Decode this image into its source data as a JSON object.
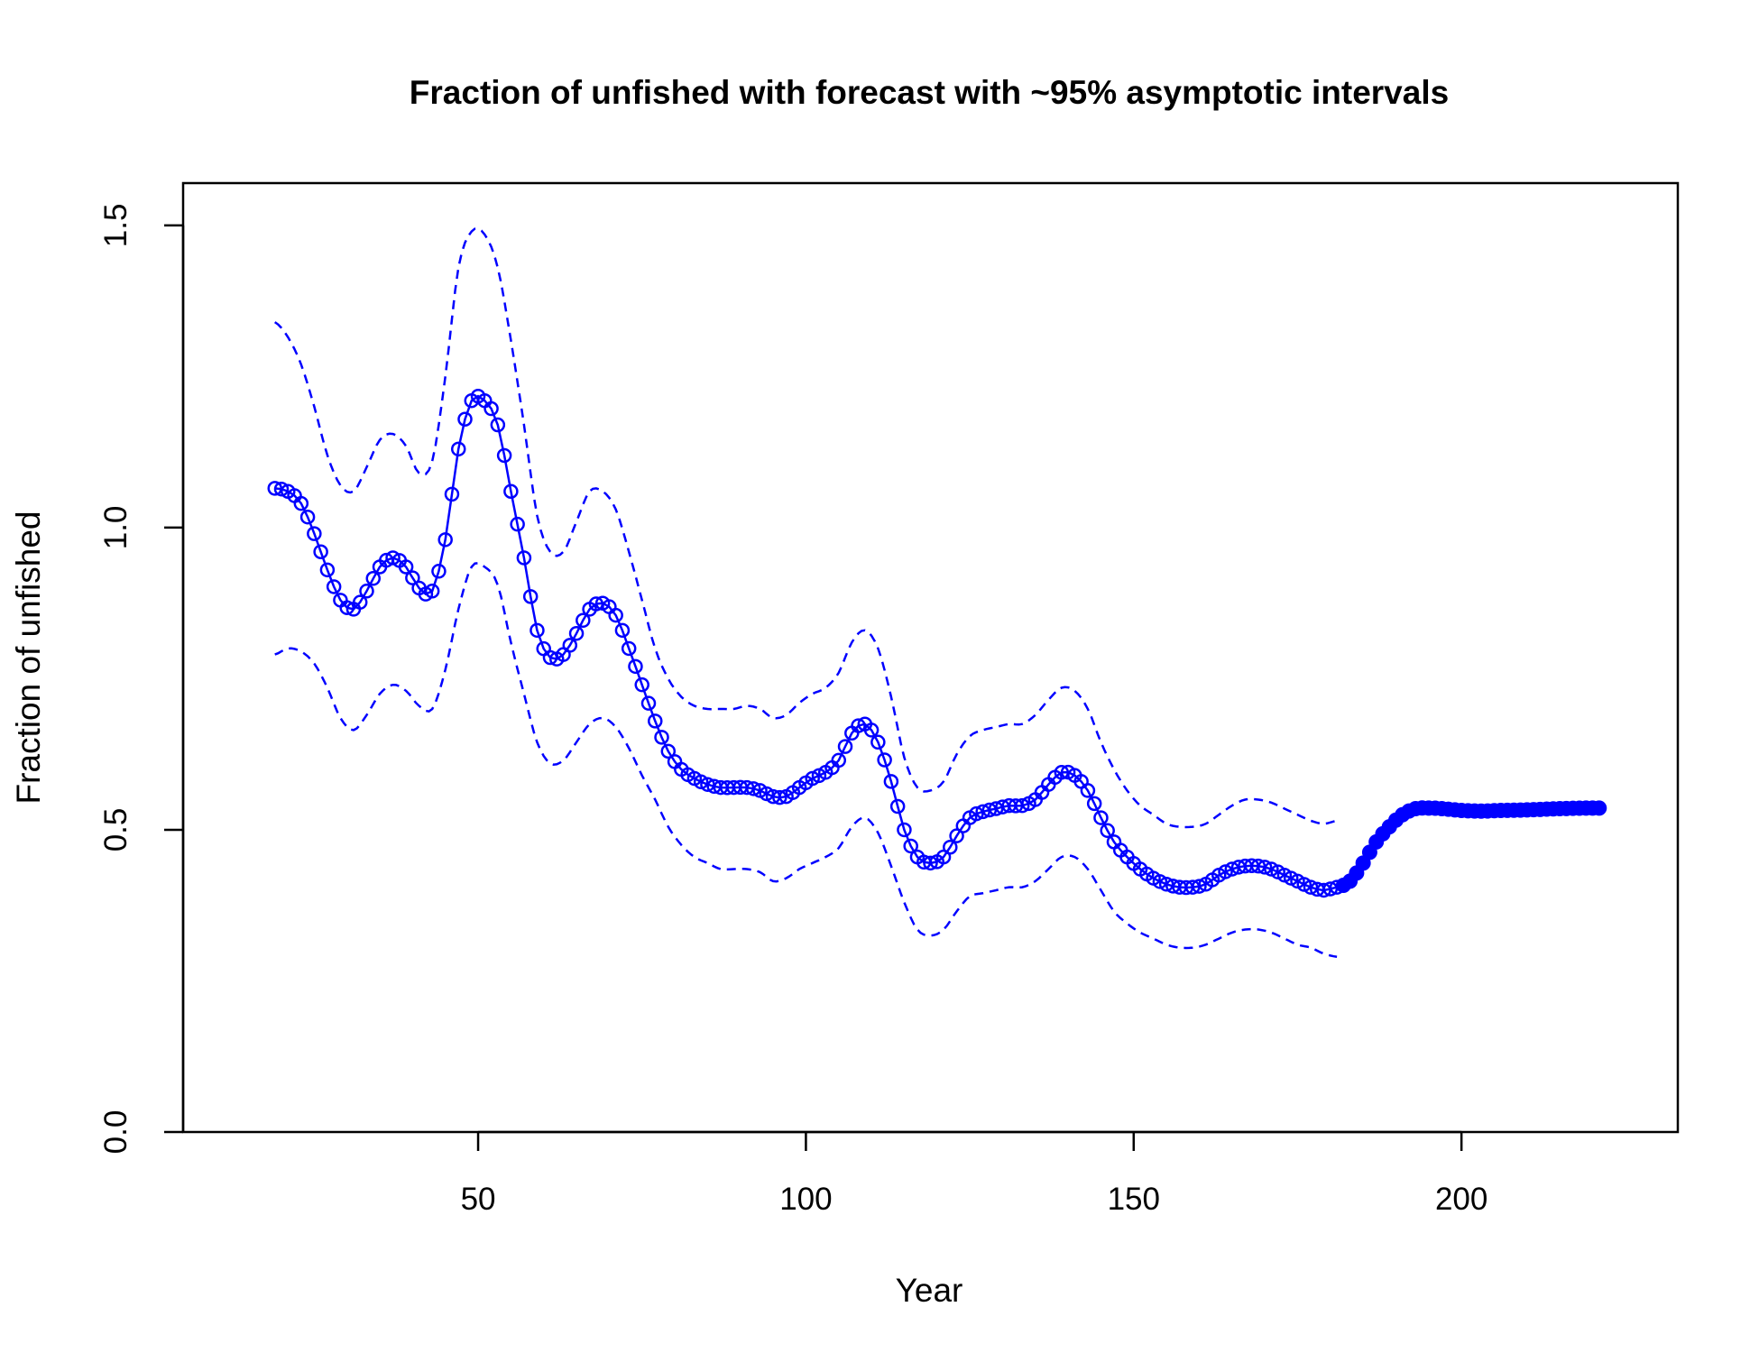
{
  "chart_data": {
    "type": "line",
    "title": "Fraction of unfished with forecast with ~95% asymptotic intervals",
    "xlabel": "Year",
    "ylabel": "Fraction of unfished",
    "xlim": [
      5,
      233
    ],
    "ylim": [
      0,
      1.57
    ],
    "x_ticks": [
      50,
      100,
      150,
      200
    ],
    "y_ticks": [
      0.0,
      0.5,
      1.0,
      1.5
    ],
    "x_tick_labels": [
      "50",
      "100",
      "150",
      "200"
    ],
    "y_tick_labels": [
      "0.0",
      "0.5",
      "1.0",
      "1.5"
    ],
    "grid": false,
    "legend": "none",
    "color": "#0000ff",
    "series": [
      {
        "style": "open circles with solid line",
        "knots": [
          [
            19,
            1.065
          ],
          [
            21,
            1.06
          ],
          [
            23,
            1.04
          ],
          [
            25,
            0.99
          ],
          [
            27,
            0.93
          ],
          [
            29,
            0.88
          ],
          [
            31,
            0.865
          ],
          [
            33,
            0.895
          ],
          [
            35,
            0.935
          ],
          [
            37,
            0.95
          ],
          [
            39,
            0.935
          ],
          [
            41,
            0.9
          ],
          [
            43,
            0.895
          ],
          [
            45,
            0.98
          ],
          [
            47,
            1.13
          ],
          [
            49,
            1.21
          ],
          [
            51,
            1.21
          ],
          [
            53,
            1.17
          ],
          [
            55,
            1.06
          ],
          [
            57,
            0.95
          ],
          [
            59,
            0.83
          ],
          [
            61,
            0.785
          ],
          [
            63,
            0.79
          ],
          [
            65,
            0.825
          ],
          [
            67,
            0.865
          ],
          [
            69,
            0.875
          ],
          [
            71,
            0.855
          ],
          [
            73,
            0.8
          ],
          [
            75,
            0.74
          ],
          [
            77,
            0.68
          ],
          [
            79,
            0.63
          ],
          [
            81,
            0.6
          ],
          [
            83,
            0.585
          ],
          [
            85,
            0.575
          ],
          [
            87,
            0.57
          ],
          [
            89,
            0.57
          ],
          [
            91,
            0.57
          ],
          [
            93,
            0.565
          ],
          [
            95,
            0.555
          ],
          [
            97,
            0.555
          ],
          [
            99,
            0.57
          ],
          [
            101,
            0.585
          ],
          [
            103,
            0.595
          ],
          [
            105,
            0.615
          ],
          [
            107,
            0.66
          ],
          [
            109,
            0.675
          ],
          [
            111,
            0.645
          ],
          [
            113,
            0.58
          ],
          [
            115,
            0.5
          ],
          [
            117,
            0.455
          ],
          [
            119,
            0.445
          ],
          [
            121,
            0.455
          ],
          [
            123,
            0.49
          ],
          [
            125,
            0.52
          ],
          [
            127,
            0.53
          ],
          [
            129,
            0.535
          ],
          [
            131,
            0.54
          ],
          [
            133,
            0.54
          ],
          [
            135,
            0.55
          ],
          [
            137,
            0.575
          ],
          [
            139,
            0.595
          ],
          [
            141,
            0.59
          ],
          [
            143,
            0.565
          ],
          [
            145,
            0.52
          ],
          [
            147,
            0.48
          ],
          [
            149,
            0.455
          ],
          [
            151,
            0.435
          ],
          [
            153,
            0.42
          ],
          [
            155,
            0.41
          ],
          [
            157,
            0.405
          ],
          [
            159,
            0.405
          ],
          [
            161,
            0.41
          ],
          [
            163,
            0.425
          ],
          [
            165,
            0.435
          ],
          [
            167,
            0.44
          ],
          [
            169,
            0.44
          ],
          [
            171,
            0.435
          ],
          [
            173,
            0.425
          ],
          [
            175,
            0.415
          ],
          [
            177,
            0.405
          ],
          [
            179,
            0.4
          ],
          [
            181,
            0.405
          ]
        ]
      },
      {
        "style": "filled circles with solid line",
        "knots": [
          [
            181,
            0.405
          ],
          [
            183,
            0.415
          ],
          [
            185,
            0.445
          ],
          [
            187,
            0.48
          ],
          [
            189,
            0.505
          ],
          [
            191,
            0.525
          ],
          [
            193,
            0.535
          ],
          [
            195,
            0.536
          ],
          [
            197,
            0.535
          ],
          [
            200,
            0.532
          ],
          [
            203,
            0.531
          ],
          [
            206,
            0.532
          ],
          [
            210,
            0.533
          ],
          [
            215,
            0.535
          ],
          [
            220,
            0.536
          ],
          [
            221,
            0.536
          ]
        ]
      },
      {
        "style": "dashed upper interval",
        "knots": [
          [
            19,
            1.34
          ],
          [
            21,
            1.315
          ],
          [
            23,
            1.27
          ],
          [
            25,
            1.2
          ],
          [
            27,
            1.12
          ],
          [
            29,
            1.07
          ],
          [
            31,
            1.06
          ],
          [
            33,
            1.1
          ],
          [
            35,
            1.145
          ],
          [
            37,
            1.155
          ],
          [
            39,
            1.135
          ],
          [
            41,
            1.09
          ],
          [
            43,
            1.11
          ],
          [
            45,
            1.25
          ],
          [
            47,
            1.43
          ],
          [
            49,
            1.49
          ],
          [
            51,
            1.485
          ],
          [
            53,
            1.43
          ],
          [
            55,
            1.31
          ],
          [
            57,
            1.17
          ],
          [
            59,
            1.02
          ],
          [
            61,
            0.96
          ],
          [
            63,
            0.96
          ],
          [
            65,
            1.01
          ],
          [
            67,
            1.06
          ],
          [
            69,
            1.06
          ],
          [
            71,
            1.03
          ],
          [
            73,
            0.96
          ],
          [
            75,
            0.88
          ],
          [
            77,
            0.8
          ],
          [
            79,
            0.75
          ],
          [
            81,
            0.72
          ],
          [
            83,
            0.705
          ],
          [
            85,
            0.7
          ],
          [
            87,
            0.7
          ],
          [
            89,
            0.7
          ],
          [
            91,
            0.705
          ],
          [
            93,
            0.7
          ],
          [
            95,
            0.685
          ],
          [
            97,
            0.69
          ],
          [
            99,
            0.71
          ],
          [
            101,
            0.725
          ],
          [
            103,
            0.735
          ],
          [
            105,
            0.76
          ],
          [
            107,
            0.81
          ],
          [
            109,
            0.83
          ],
          [
            111,
            0.8
          ],
          [
            113,
            0.72
          ],
          [
            115,
            0.62
          ],
          [
            117,
            0.57
          ],
          [
            119,
            0.565
          ],
          [
            121,
            0.58
          ],
          [
            123,
            0.625
          ],
          [
            125,
            0.655
          ],
          [
            127,
            0.665
          ],
          [
            129,
            0.67
          ],
          [
            131,
            0.675
          ],
          [
            133,
            0.675
          ],
          [
            135,
            0.69
          ],
          [
            137,
            0.715
          ],
          [
            139,
            0.735
          ],
          [
            141,
            0.73
          ],
          [
            143,
            0.7
          ],
          [
            145,
            0.645
          ],
          [
            147,
            0.6
          ],
          [
            149,
            0.565
          ],
          [
            151,
            0.54
          ],
          [
            153,
            0.525
          ],
          [
            155,
            0.51
          ],
          [
            157,
            0.505
          ],
          [
            159,
            0.505
          ],
          [
            161,
            0.51
          ],
          [
            163,
            0.525
          ],
          [
            165,
            0.54
          ],
          [
            167,
            0.55
          ],
          [
            169,
            0.55
          ],
          [
            171,
            0.545
          ],
          [
            173,
            0.535
          ],
          [
            175,
            0.525
          ],
          [
            177,
            0.515
          ],
          [
            179,
            0.51
          ],
          [
            181,
            0.515
          ]
        ]
      },
      {
        "style": "dashed lower interval",
        "knots": [
          [
            19,
            0.79
          ],
          [
            21,
            0.8
          ],
          [
            23,
            0.795
          ],
          [
            25,
            0.775
          ],
          [
            27,
            0.735
          ],
          [
            29,
            0.685
          ],
          [
            31,
            0.665
          ],
          [
            33,
            0.69
          ],
          [
            35,
            0.725
          ],
          [
            37,
            0.74
          ],
          [
            39,
            0.73
          ],
          [
            41,
            0.705
          ],
          [
            43,
            0.7
          ],
          [
            45,
            0.765
          ],
          [
            47,
            0.865
          ],
          [
            49,
            0.935
          ],
          [
            51,
            0.935
          ],
          [
            53,
            0.905
          ],
          [
            55,
            0.81
          ],
          [
            57,
            0.725
          ],
          [
            59,
            0.645
          ],
          [
            61,
            0.61
          ],
          [
            63,
            0.615
          ],
          [
            65,
            0.645
          ],
          [
            67,
            0.675
          ],
          [
            69,
            0.685
          ],
          [
            71,
            0.67
          ],
          [
            73,
            0.635
          ],
          [
            75,
            0.59
          ],
          [
            77,
            0.55
          ],
          [
            79,
            0.505
          ],
          [
            81,
            0.475
          ],
          [
            83,
            0.455
          ],
          [
            85,
            0.445
          ],
          [
            87,
            0.435
          ],
          [
            89,
            0.435
          ],
          [
            91,
            0.435
          ],
          [
            93,
            0.43
          ],
          [
            95,
            0.415
          ],
          [
            97,
            0.42
          ],
          [
            99,
            0.435
          ],
          [
            101,
            0.445
          ],
          [
            103,
            0.455
          ],
          [
            105,
            0.47
          ],
          [
            107,
            0.505
          ],
          [
            109,
            0.52
          ],
          [
            111,
            0.495
          ],
          [
            113,
            0.44
          ],
          [
            115,
            0.38
          ],
          [
            117,
            0.335
          ],
          [
            119,
            0.325
          ],
          [
            121,
            0.335
          ],
          [
            123,
            0.365
          ],
          [
            125,
            0.39
          ],
          [
            127,
            0.395
          ],
          [
            129,
            0.4
          ],
          [
            131,
            0.405
          ],
          [
            133,
            0.405
          ],
          [
            135,
            0.415
          ],
          [
            137,
            0.435
          ],
          [
            139,
            0.455
          ],
          [
            141,
            0.455
          ],
          [
            143,
            0.435
          ],
          [
            145,
            0.4
          ],
          [
            147,
            0.365
          ],
          [
            149,
            0.345
          ],
          [
            151,
            0.33
          ],
          [
            153,
            0.32
          ],
          [
            155,
            0.31
          ],
          [
            157,
            0.305
          ],
          [
            159,
            0.305
          ],
          [
            161,
            0.31
          ],
          [
            163,
            0.32
          ],
          [
            165,
            0.33
          ],
          [
            167,
            0.335
          ],
          [
            169,
            0.335
          ],
          [
            171,
            0.33
          ],
          [
            173,
            0.32
          ],
          [
            175,
            0.31
          ],
          [
            177,
            0.305
          ],
          [
            179,
            0.295
          ],
          [
            181,
            0.29
          ]
        ]
      }
    ]
  }
}
